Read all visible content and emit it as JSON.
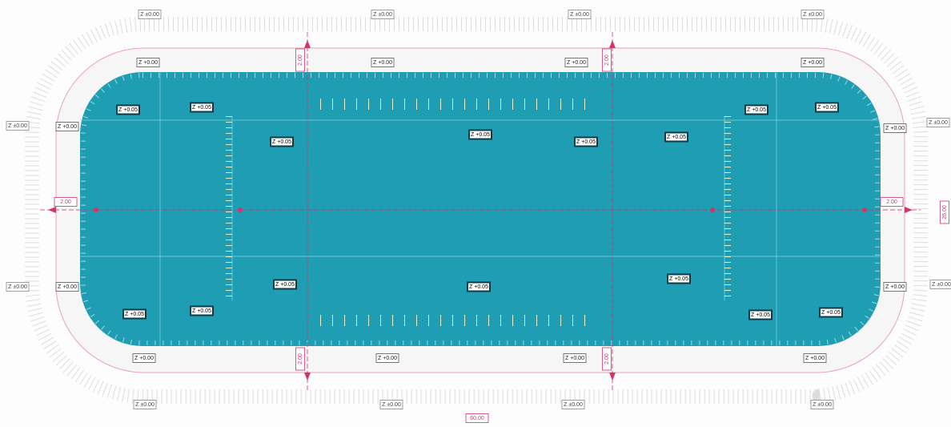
{
  "outer_labels": [
    "Z ±0.00",
    "Z ±0.00",
    "Z ±0.00",
    "Z ±0.00",
    "Z ±0.00",
    "Z ±0.00",
    "Z ±0.00",
    "Z ±0.00",
    "Z ±0.00",
    "Z ±0.00",
    "Z ±0.00",
    "Z ±0.00"
  ],
  "edge_labels": [
    "Z +0.00",
    "Z +0.00",
    "Z +0.00",
    "Z +0.00",
    "Z +0.00",
    "Z +0.00",
    "Z +0.00",
    "Z +0.00",
    "Z +0.00",
    "Z +0.00",
    "Z +0.00",
    "Z +0.00"
  ],
  "inner_labels": [
    "Z +0.05",
    "Z +0.05",
    "Z +0.05",
    "Z +0.05",
    "Z +0.05",
    "Z +0.05",
    "Z +0.05",
    "Z +0.05",
    "Z +0.05",
    "Z +0.05",
    "Z +0.05",
    "Z +0.05",
    "Z +0.05",
    "Z +0.05",
    "Z +0.05"
  ],
  "dimensions": [
    "2.00",
    "2.00",
    "2.00",
    "2.00",
    "2.00",
    "2.00",
    "60.00",
    "26.00"
  ]
}
